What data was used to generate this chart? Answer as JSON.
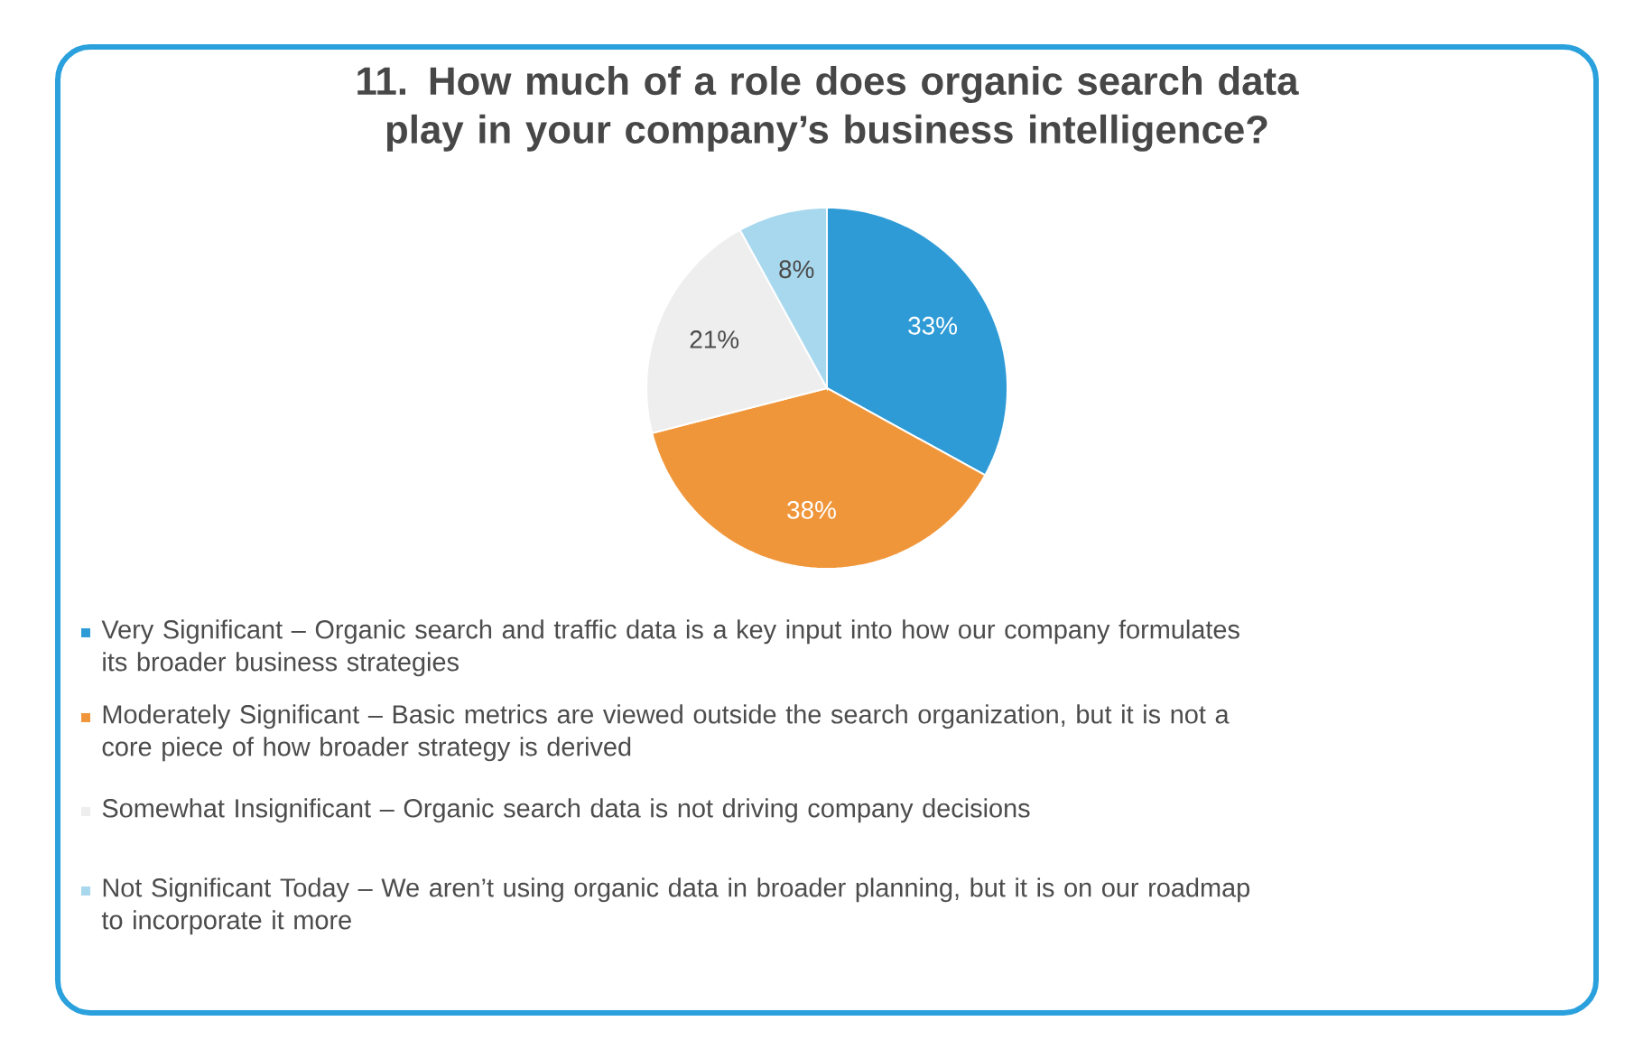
{
  "chart_data": {
    "type": "pie",
    "title": "11. How much of a role does organic search data play in your company’s business intelligence?",
    "categories": [
      "Very Significant – Organic search and traffic data is a key input into how our company formulates its broader business strategies",
      "Moderately Significant – Basic metrics are viewed outside the search organization, but it is not a core piece of how broader strategy is derived",
      "Somewhat Insignificant – Organic search data is not driving company decisions",
      "Not Significant Today – We aren’t using organic data in broader planning, but it is on our roadmap to incorporate it more"
    ],
    "values": [
      33,
      38,
      21,
      8
    ],
    "colors": [
      "#2e9bd6",
      "#f0963a",
      "#eeeeee",
      "#a8d8ee"
    ],
    "value_labels": [
      "33%",
      "38%",
      "21%",
      "8%"
    ],
    "legend": "bottom"
  }
}
